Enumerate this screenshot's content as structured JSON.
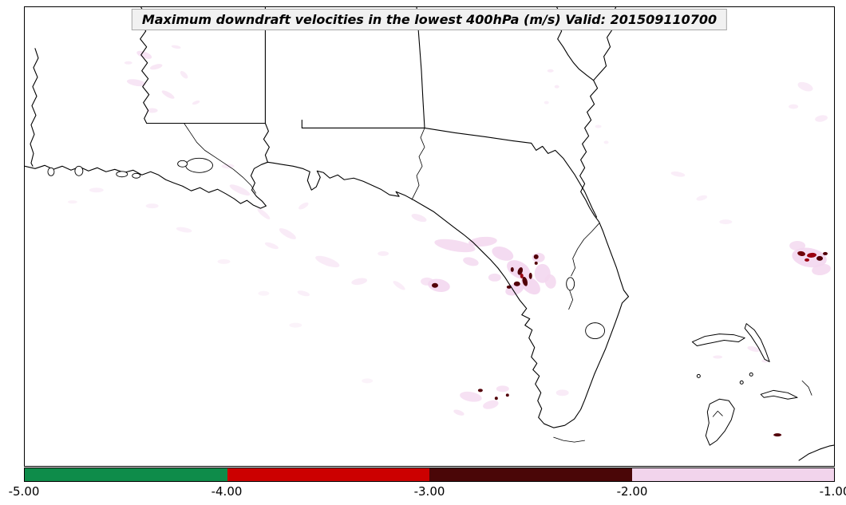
{
  "title": "Maximum downdraft velocities in the lowest 400hPa (m/s) Valid: 201509110700",
  "colorbar": {
    "min": -5.0,
    "max": -1.0,
    "tick_labels": [
      "-5.00",
      "-4.00",
      "-3.00",
      "-2.00",
      "-1.00"
    ],
    "segments": [
      {
        "range": "-5.00 to -4.00",
        "color": "#0e8c4a"
      },
      {
        "range": "-4.00 to -3.00",
        "color": "#cc0000"
      },
      {
        "range": "-3.00 to -2.00",
        "color": "#4a0607"
      },
      {
        "range": "-2.00 to -1.00",
        "color": "#f2d4ec"
      }
    ]
  },
  "chart_data": {
    "type": "heatmap",
    "title": "Maximum downdraft velocities in the lowest 400hPa (m/s) Valid: 201509110700",
    "units": "m/s",
    "valid_time": "201509110700",
    "colorbar_ticks": [
      -5.0,
      -4.0,
      -3.0,
      -2.0,
      -1.0
    ],
    "colorbar_colors": [
      "#0e8c4a",
      "#cc0000",
      "#4a0607",
      "#f2d4ec"
    ],
    "legend_position": "bottom",
    "notes": "Light pink shading (-2 to -1 m/s) scattered over Louisiana, the Gulf, central Florida and the western Atlantic; dark maroon/red cells (-3 to -2 m/s) over central Florida near the coast, south of the peninsula, and at the far right edge of the map."
  },
  "shading": {
    "palette": {
      "p": "#f3d7ef",
      "m": "#520008",
      "r": "#9b0010",
      "d": "#6e0008"
    },
    "blobs": [
      [
        150,
        60,
        10,
        4,
        20,
        "p",
        0.7
      ],
      [
        165,
        75,
        8,
        3,
        -15,
        "p",
        0.6
      ],
      [
        140,
        95,
        12,
        4,
        10,
        "p",
        0.65
      ],
      [
        180,
        110,
        9,
        3,
        30,
        "p",
        0.6
      ],
      [
        160,
        130,
        7,
        3,
        0,
        "p",
        0.55
      ],
      [
        200,
        85,
        6,
        3,
        45,
        "p",
        0.5
      ],
      [
        130,
        70,
        5,
        2,
        0,
        "p",
        0.5
      ],
      [
        215,
        120,
        5,
        2,
        -20,
        "p",
        0.5
      ],
      [
        190,
        50,
        6,
        2,
        10,
        "p",
        0.5
      ],
      [
        270,
        230,
        14,
        4,
        25,
        "p",
        0.55
      ],
      [
        300,
        260,
        10,
        3,
        40,
        "p",
        0.5
      ],
      [
        330,
        285,
        12,
        4,
        30,
        "p",
        0.5
      ],
      [
        255,
        200,
        8,
        3,
        0,
        "p",
        0.45
      ],
      [
        350,
        250,
        7,
        3,
        -30,
        "p",
        0.45
      ],
      [
        310,
        300,
        9,
        3,
        20,
        "p",
        0.45
      ],
      [
        380,
        320,
        16,
        5,
        20,
        "p",
        0.5
      ],
      [
        420,
        345,
        10,
        4,
        -10,
        "p",
        0.5
      ],
      [
        350,
        360,
        8,
        3,
        15,
        "p",
        0.4
      ],
      [
        450,
        310,
        7,
        3,
        0,
        "p",
        0.45
      ],
      [
        470,
        350,
        9,
        3,
        35,
        "p",
        0.45
      ],
      [
        495,
        265,
        10,
        4,
        20,
        "p",
        0.55
      ],
      [
        200,
        280,
        10,
        3,
        10,
        "p",
        0.4
      ],
      [
        160,
        250,
        8,
        3,
        0,
        "p",
        0.4
      ],
      [
        90,
        230,
        9,
        3,
        0,
        "p",
        0.4
      ],
      [
        60,
        245,
        6,
        2,
        0,
        "p",
        0.35
      ],
      [
        250,
        320,
        8,
        3,
        0,
        "p",
        0.35
      ],
      [
        300,
        360,
        7,
        3,
        0,
        "p",
        0.3
      ],
      [
        340,
        400,
        8,
        3,
        0,
        "p",
        0.3
      ],
      [
        430,
        470,
        7,
        3,
        0,
        "p",
        0.3
      ],
      [
        540,
        300,
        26,
        7,
        10,
        "p",
        0.85
      ],
      [
        575,
        295,
        18,
        6,
        -5,
        "p",
        0.85
      ],
      [
        600,
        310,
        14,
        8,
        20,
        "p",
        0.9
      ],
      [
        620,
        330,
        16,
        10,
        30,
        "p",
        0.95
      ],
      [
        635,
        350,
        14,
        9,
        40,
        "p",
        0.95
      ],
      [
        650,
        335,
        10,
        12,
        0,
        "p",
        0.9
      ],
      [
        615,
        355,
        12,
        7,
        -20,
        "p",
        0.9
      ],
      [
        590,
        340,
        8,
        5,
        0,
        "p",
        0.8
      ],
      [
        520,
        350,
        14,
        8,
        10,
        "p",
        0.9
      ],
      [
        505,
        345,
        8,
        5,
        0,
        "p",
        0.7
      ],
      [
        560,
        320,
        10,
        5,
        15,
        "p",
        0.8
      ],
      [
        645,
        315,
        8,
        6,
        0,
        "p",
        0.85
      ],
      [
        660,
        345,
        7,
        9,
        -10,
        "p",
        0.85
      ],
      [
        515,
        350,
        4,
        3,
        0,
        "m",
        1
      ],
      [
        622,
        332,
        3,
        5,
        20,
        "m",
        1
      ],
      [
        628,
        345,
        3,
        6,
        -15,
        "m",
        1
      ],
      [
        618,
        348,
        4,
        3,
        0,
        "m",
        1
      ],
      [
        635,
        338,
        2,
        4,
        0,
        "m",
        1
      ],
      [
        612,
        330,
        2,
        3,
        0,
        "m",
        1
      ],
      [
        642,
        322,
        2,
        2,
        0,
        "m",
        1
      ],
      [
        608,
        352,
        3,
        2,
        0,
        "m",
        1
      ],
      [
        642,
        314,
        3,
        3,
        0,
        "m",
        1
      ],
      [
        624,
        338,
        2,
        3,
        0,
        "r",
        1
      ],
      [
        985,
        315,
        22,
        12,
        10,
        "p",
        0.9
      ],
      [
        1000,
        330,
        12,
        7,
        -10,
        "p",
        0.85
      ],
      [
        970,
        300,
        10,
        6,
        0,
        "p",
        0.8
      ],
      [
        975,
        310,
        5,
        3,
        10,
        "d",
        1
      ],
      [
        988,
        312,
        6,
        3,
        -5,
        "r",
        1
      ],
      [
        998,
        316,
        4,
        3,
        0,
        "m",
        1
      ],
      [
        1005,
        310,
        3,
        2,
        0,
        "m",
        1
      ],
      [
        982,
        318,
        3,
        2,
        0,
        "r",
        1
      ],
      [
        560,
        490,
        14,
        6,
        10,
        "p",
        0.75
      ],
      [
        585,
        500,
        10,
        5,
        -15,
        "p",
        0.7
      ],
      [
        600,
        480,
        8,
        4,
        0,
        "p",
        0.7
      ],
      [
        545,
        510,
        7,
        3,
        20,
        "p",
        0.6
      ],
      [
        675,
        485,
        8,
        4,
        0,
        "p",
        0.5
      ],
      [
        572,
        482,
        3,
        2,
        0,
        "m",
        1
      ],
      [
        592,
        492,
        2,
        2,
        0,
        "m",
        1
      ],
      [
        606,
        488,
        2,
        2,
        0,
        "m",
        1
      ],
      [
        915,
        430,
        8,
        3,
        15,
        "p",
        0.55
      ],
      [
        930,
        445,
        5,
        2,
        0,
        "p",
        0.5
      ],
      [
        870,
        440,
        6,
        2,
        0,
        "p",
        0.5
      ],
      [
        945,
        538,
        5,
        2,
        0,
        "m",
        1
      ],
      [
        980,
        100,
        10,
        5,
        20,
        "p",
        0.5
      ],
      [
        1000,
        140,
        8,
        4,
        -10,
        "p",
        0.5
      ],
      [
        965,
        125,
        6,
        3,
        0,
        "p",
        0.45
      ],
      [
        660,
        80,
        4,
        2,
        0,
        "p",
        0.5
      ],
      [
        668,
        100,
        3,
        2,
        0,
        "p",
        0.5
      ],
      [
        655,
        120,
        3,
        2,
        0,
        "p",
        0.4
      ],
      [
        720,
        150,
        4,
        2,
        0,
        "p",
        0.4
      ],
      [
        730,
        170,
        3,
        2,
        0,
        "p",
        0.4
      ],
      [
        820,
        210,
        9,
        3,
        10,
        "p",
        0.45
      ],
      [
        850,
        240,
        7,
        3,
        -15,
        "p",
        0.4
      ],
      [
        880,
        270,
        8,
        3,
        0,
        "p",
        0.4
      ]
    ]
  }
}
